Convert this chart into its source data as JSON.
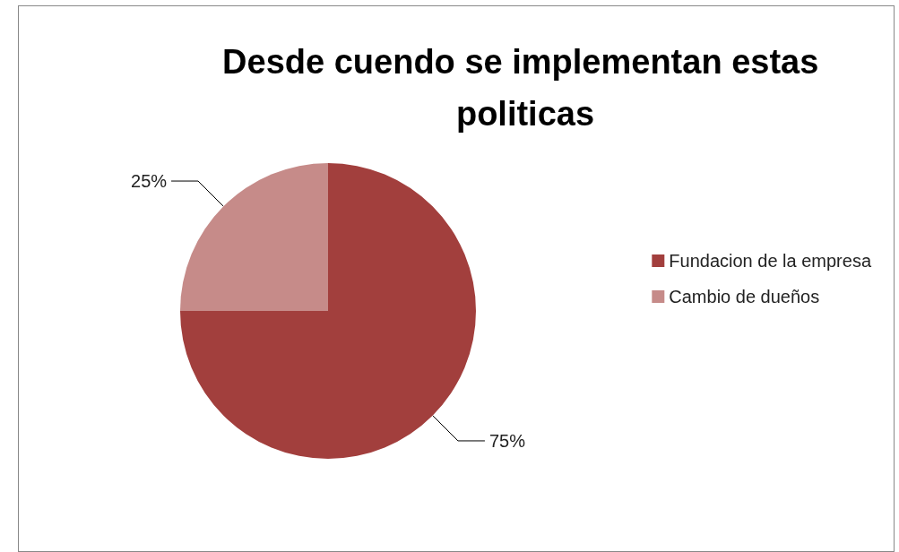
{
  "chart_data": {
    "type": "pie",
    "title": "Desde cuendo se implementan estas politicas",
    "categories": [
      "Fundacion de la empresa",
      "Cambio de dueños"
    ],
    "values": [
      75,
      25
    ],
    "colors": [
      "#a23f3d",
      "#c68b89"
    ],
    "value_labels": [
      "75%",
      "25%"
    ],
    "legend": "right"
  }
}
